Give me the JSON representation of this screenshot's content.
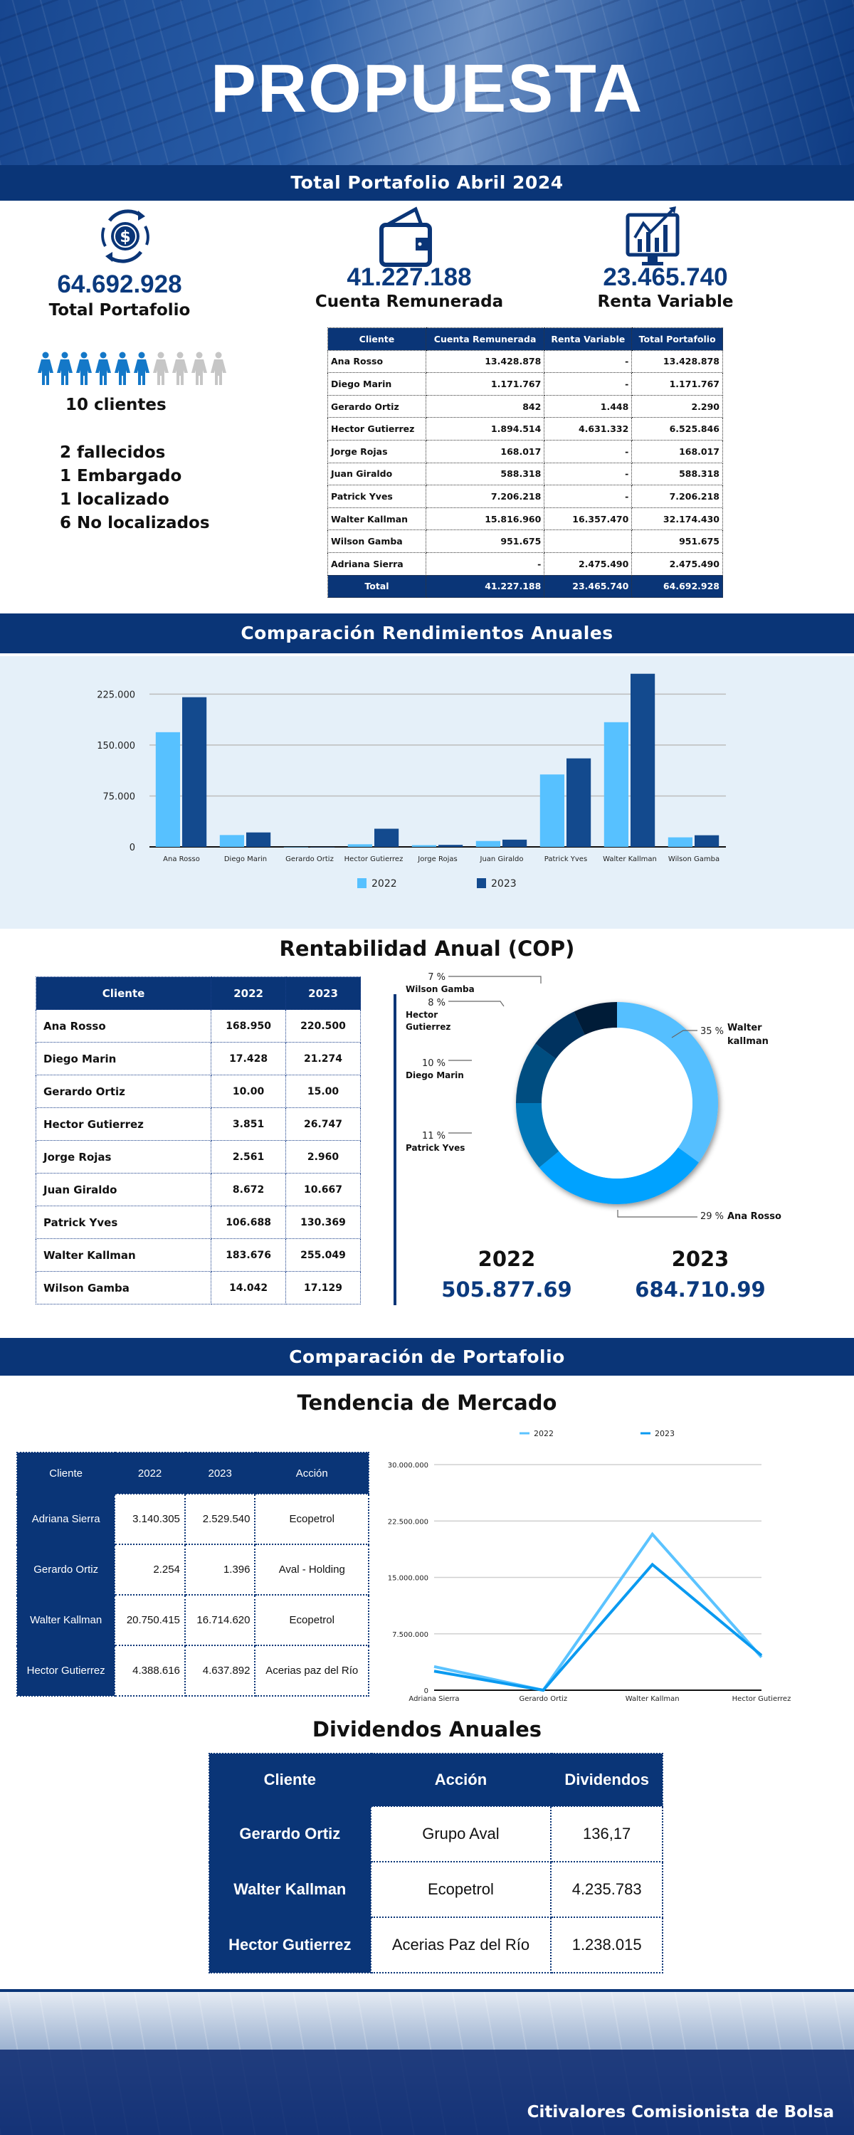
{
  "hero": {
    "title": "PROPUESTA"
  },
  "bands": {
    "portfolio": "Total Portafolio Abril 2024",
    "returns": "Comparación Rendimientos Anuales",
    "comparison": "Comparación de Portafolio"
  },
  "kpis": [
    {
      "value": "64.692.928",
      "label": "Total Portafolio",
      "icon": "dollar-cycle-icon"
    },
    {
      "value": "41.227.188",
      "label": "Cuenta Remunerada",
      "icon": "wallet-icon"
    },
    {
      "value": "23.465.740",
      "label": "Renta Variable",
      "icon": "chart-monitor-icon"
    }
  ],
  "clients": {
    "count_label": "10 clientes",
    "highlighted": 6,
    "total": 10,
    "status": [
      "2 fallecidos",
      "1 Embargado",
      "1 localizado",
      "6 No localizados"
    ]
  },
  "portfolio_table": {
    "headers": [
      "Cliente",
      "Cuenta Remunerada",
      "Renta Variable",
      "Total Portafolio"
    ],
    "rows": [
      [
        "Ana Rosso",
        "13.428.878",
        "-",
        "13.428.878"
      ],
      [
        "Diego Marin",
        "1.171.767",
        "-",
        "1.171.767"
      ],
      [
        "Gerardo Ortiz",
        "842",
        "1.448",
        "2.290"
      ],
      [
        "Hector Gutierrez",
        "1.894.514",
        "4.631.332",
        "6.525.846"
      ],
      [
        "Jorge Rojas",
        "168.017",
        "-",
        "168.017"
      ],
      [
        "Juan Giraldo",
        "588.318",
        "-",
        "588.318"
      ],
      [
        "Patrick Yves",
        "7.206.218",
        "-",
        "7.206.218"
      ],
      [
        "Walter Kallman",
        "15.816.960",
        "16.357.470",
        "32.174.430"
      ],
      [
        "Wilson Gamba",
        "951.675",
        "",
        "951.675"
      ],
      [
        "Adriana Sierra",
        "-",
        "2.475.490",
        "2.475.490"
      ]
    ],
    "total": [
      "Total",
      "41.227.188",
      "23.465.740",
      "64.692.928"
    ]
  },
  "colors": {
    "brand": "#0a3577",
    "light": "#57c1ff",
    "dark": "#134a8e"
  },
  "rentabilidad": {
    "title": "Rentabilidad Anual (COP)",
    "headers": [
      "Cliente",
      "2022",
      "2023"
    ],
    "rows": [
      [
        "Ana Rosso",
        "168.950",
        "220.500"
      ],
      [
        "Diego Marin",
        "17.428",
        "21.274"
      ],
      [
        "Gerardo Ortiz",
        "10.00",
        "15.00"
      ],
      [
        "Hector Gutierrez",
        "3.851",
        "26.747"
      ],
      [
        "Jorge Rojas",
        "2.561",
        "2.960"
      ],
      [
        "Juan Giraldo",
        "8.672",
        "10.667"
      ],
      [
        "Patrick Yves",
        "106.688",
        "130.369"
      ],
      [
        "Walter Kallman",
        "183.676",
        "255.049"
      ],
      [
        "Wilson Gamba",
        "14.042",
        "17.129"
      ]
    ],
    "totals": [
      {
        "year": "2022",
        "value": "505.877.69"
      },
      {
        "year": "2023",
        "value": "684.710.99"
      }
    ]
  },
  "chart_data": [
    {
      "type": "bar",
      "categories": [
        "Ana Rosso",
        "Diego Marin",
        "Gerardo Ortiz",
        "Hector Gutierrez",
        "Jorge Rojas",
        "Juan Giraldo",
        "Patrick Yves",
        "Walter Kallman",
        "Wilson Gamba"
      ],
      "series": [
        {
          "name": "2022",
          "color": "#57c1ff",
          "values": [
            168950,
            17428,
            10,
            3851,
            2561,
            8672,
            106688,
            183676,
            14042
          ]
        },
        {
          "name": "2023",
          "color": "#134a8e",
          "values": [
            220500,
            21274,
            15,
            26747,
            2960,
            10667,
            130369,
            255049,
            17129
          ]
        }
      ],
      "yticks": [
        "0",
        "75.000",
        "150.000",
        "225.000"
      ],
      "ylim": [
        0,
        260000
      ],
      "grid": true,
      "legend": "bottom"
    },
    {
      "type": "pie",
      "donut": true,
      "slices": [
        {
          "label": "Walter kallman",
          "pct": 35,
          "color": "#55bfff"
        },
        {
          "label": "Ana Rosso",
          "pct": 29,
          "color": "#00a2ff"
        },
        {
          "label": "Patrick Yves",
          "pct": 11,
          "color": "#0277b8"
        },
        {
          "label": "Diego Marin",
          "pct": 10,
          "color": "#024d80"
        },
        {
          "label": "Hector Gutierrez",
          "pct": 8,
          "color": "#01335f"
        },
        {
          "label": "Wilson Gamba",
          "pct": 7,
          "color": "#021a38"
        }
      ]
    },
    {
      "type": "line",
      "categories": [
        "Adriana Sierra",
        "Gerardo Ortiz",
        "Walter Kallman",
        "Hector Gutierrez"
      ],
      "series": [
        {
          "name": "2022",
          "color": "#5bc3ff",
          "values": [
            3140305,
            2254,
            20750415,
            4388616
          ]
        },
        {
          "name": "2023",
          "color": "#0a9af0",
          "values": [
            2529540,
            1396,
            16714620,
            4637892
          ]
        }
      ],
      "yticks": [
        "0",
        "7.500.000",
        "15.000.000",
        "22.500.000",
        "30.000.000"
      ],
      "ylim": [
        0,
        30000000
      ],
      "grid": true,
      "legend": "top"
    }
  ],
  "market": {
    "title": "Tendencia de Mercado",
    "headers": [
      "Cliente",
      "2022",
      "2023",
      "Acción"
    ],
    "rows": [
      [
        "Adriana Sierra",
        "3.140.305",
        "2.529.540",
        "Ecopetrol"
      ],
      [
        "Gerardo Ortiz",
        "2.254",
        "1.396",
        "Aval - Holding"
      ],
      [
        "Walter Kallman",
        "20.750.415",
        "16.714.620",
        "Ecopetrol"
      ],
      [
        "Hector Gutierrez",
        "4.388.616",
        "4.637.892",
        "Acerias paz del Río"
      ]
    ]
  },
  "dividends": {
    "title": "Dividendos Anuales",
    "headers": [
      "Cliente",
      "Acción",
      "Dividendos"
    ],
    "rows": [
      [
        "Gerardo Ortiz",
        "Grupo Aval",
        "136,17"
      ],
      [
        "Walter Kallman",
        "Ecopetrol",
        "4.235.783"
      ],
      [
        "Hector Gutierrez",
        "Acerias Paz del Río",
        "1.238.015"
      ]
    ]
  },
  "footer": {
    "company": "Citivalores Comisionista de Bolsa"
  }
}
